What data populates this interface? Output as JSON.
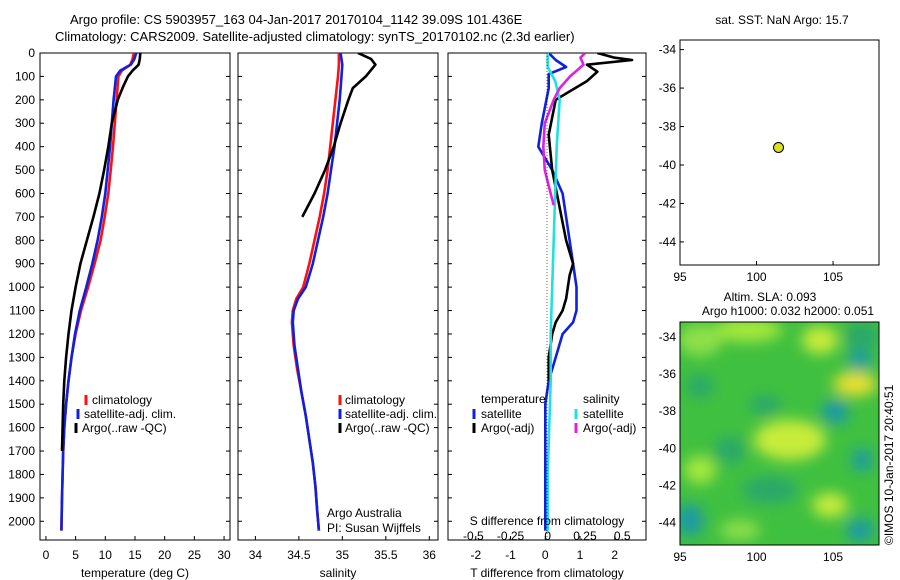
{
  "header": {
    "line1": "Argo profile: CS 5903957_163 04-Jan-2017 20170104_1142 39.09S 101.436E",
    "line2": "Climatology: CARS2009. Satellite-adjusted climatology: synTS_20170102.nc (2.3d earlier)"
  },
  "footer_note": "©IMOS 10-Jan-2017 20:40:51",
  "colors": {
    "climatology": "#ff1010",
    "satellite": "#1020e0",
    "argo": "#000000",
    "satellite_diff_salinity": "#20e0e0",
    "argo_diff_salinity": "#e020e0",
    "argo_marker": "#d8e020",
    "map_background": "#40c040"
  },
  "chart_data": [
    {
      "type": "line",
      "panel": "temperature",
      "xlabel": "temperature (deg C)",
      "ylabel": "",
      "xlim": [
        -1,
        31
      ],
      "ylim": [
        2080,
        0
      ],
      "xticks": [
        "0",
        "5",
        "10",
        "15",
        "20",
        "25",
        "30"
      ],
      "yticks": [
        "0",
        "100",
        "200",
        "300",
        "400",
        "500",
        "600",
        "700",
        "800",
        "900",
        "1000",
        "1100",
        "1200",
        "1300",
        "1400",
        "1500",
        "1600",
        "1700",
        "1800",
        "1900",
        "2000"
      ],
      "legend": [
        "climatology",
        "satellite-adj. clim.",
        "Argo(..raw -QC)"
      ],
      "series": [
        {
          "name": "climatology",
          "color_key": "climatology",
          "x": [
            14.8,
            14.6,
            14.2,
            12.8,
            12.2,
            11.9,
            11.6,
            11.3,
            10.9,
            10.5,
            9.9,
            9.2,
            8.2,
            7.1,
            5.9,
            5.0,
            4.3,
            3.8,
            3.4,
            3.1,
            2.9,
            2.8,
            2.7,
            2.6
          ],
          "y": [
            0,
            25,
            50,
            75,
            100,
            200,
            300,
            400,
            500,
            600,
            700,
            800,
            900,
            1000,
            1100,
            1200,
            1300,
            1400,
            1500,
            1600,
            1700,
            1800,
            1900,
            2040
          ]
        },
        {
          "name": "satellite-adj. clim.",
          "color_key": "satellite",
          "x": [
            15.2,
            14.9,
            14.3,
            12.5,
            11.8,
            11.4,
            11.1,
            10.8,
            10.4,
            10.0,
            9.4,
            8.7,
            7.8,
            6.8,
            5.7,
            4.9,
            4.3,
            3.8,
            3.4,
            3.1,
            2.9,
            2.8,
            2.7,
            2.6
          ],
          "y": [
            0,
            25,
            50,
            75,
            100,
            200,
            300,
            400,
            500,
            600,
            700,
            800,
            900,
            1000,
            1100,
            1200,
            1300,
            1400,
            1500,
            1600,
            1700,
            1800,
            1900,
            2040
          ]
        },
        {
          "name": "Argo(..raw -QC)",
          "color_key": "argo",
          "x": [
            15.9,
            15.8,
            15.6,
            14.6,
            13.8,
            12.9,
            12.1,
            11.6,
            11.1,
            10.5,
            9.8,
            9.0,
            8.0,
            6.9,
            5.8,
            5.0,
            4.3,
            3.8,
            3.4,
            3.1,
            2.9,
            2.8,
            2.7
          ],
          "y": [
            0,
            25,
            50,
            75,
            100,
            150,
            200,
            250,
            300,
            400,
            500,
            600,
            700,
            800,
            900,
            1000,
            1100,
            1200,
            1300,
            1400,
            1500,
            1600,
            1700
          ]
        }
      ]
    },
    {
      "type": "line",
      "panel": "salinity",
      "xlabel": "salinity",
      "ylabel": "",
      "xlim": [
        33.8,
        36.1
      ],
      "ylim": [
        2080,
        0
      ],
      "xticks": [
        "34",
        "34.5",
        "35",
        "35.5",
        "36"
      ],
      "legend": [
        "climatology",
        "satellite-adj. clim.",
        "Argo(..raw -QC)"
      ],
      "annotation": [
        "Argo Australia",
        "PI: Susan Wijffels"
      ],
      "series": [
        {
          "name": "climatology",
          "color_key": "climatology",
          "x": [
            34.96,
            34.96,
            34.95,
            34.92,
            34.89,
            34.86,
            34.83,
            34.79,
            34.74,
            34.68,
            34.62,
            34.55,
            34.47,
            34.43,
            34.42,
            34.44,
            34.48,
            34.53,
            34.58,
            34.62,
            34.66,
            34.69,
            34.71,
            34.73
          ],
          "y": [
            0,
            50,
            100,
            200,
            300,
            400,
            500,
            600,
            700,
            800,
            900,
            1000,
            1050,
            1100,
            1150,
            1250,
            1350,
            1450,
            1550,
            1650,
            1750,
            1850,
            1950,
            2040
          ]
        },
        {
          "name": "satellite-adj. clim.",
          "color_key": "satellite",
          "x": [
            34.98,
            35.0,
            34.99,
            34.97,
            34.94,
            34.91,
            34.87,
            34.83,
            34.78,
            34.72,
            34.66,
            34.58,
            34.49,
            34.44,
            34.43,
            34.45,
            34.49,
            34.53,
            34.58,
            34.62,
            34.66,
            34.69,
            34.71,
            34.73
          ],
          "y": [
            0,
            50,
            100,
            200,
            300,
            400,
            500,
            600,
            700,
            800,
            900,
            1000,
            1050,
            1100,
            1150,
            1250,
            1350,
            1450,
            1550,
            1650,
            1750,
            1850,
            1950,
            2040
          ]
        },
        {
          "name": "Argo(..raw -QC)",
          "color_key": "argo",
          "x": [
            35.18,
            35.33,
            35.38,
            35.27,
            35.12,
            35.07,
            34.98,
            34.9,
            34.8,
            34.68,
            34.54
          ],
          "y": [
            0,
            25,
            50,
            100,
            150,
            200,
            300,
            400,
            500,
            600,
            700
          ]
        }
      ]
    },
    {
      "type": "line",
      "panel": "difference",
      "xlabel": "T difference from climatology",
      "secondary_xlabel": "S difference from climatology",
      "xlim": [
        -2.8,
        2.9
      ],
      "ylim": [
        2080,
        0
      ],
      "xticks": [
        "-2",
        "-1",
        "0",
        "1",
        "2"
      ],
      "secondary_xticks": [
        "-0.5",
        "-0.25",
        "0",
        "0.25",
        "0.5"
      ],
      "legend_left_title": "temperature",
      "legend_right_title": "salinity",
      "legend": [
        "satellite",
        "Argo(-adj)",
        "satellite",
        "Argo(-adj)"
      ],
      "series": [
        {
          "name": "satellite",
          "quantity": "temperature",
          "color_key": "satellite",
          "x": [
            0.1,
            0.3,
            0.6,
            0.1,
            0.1,
            -0.1,
            -0.2,
            0.2,
            0.5,
            0.6,
            0.7,
            0.8,
            0.9,
            0.9,
            0.8,
            0.5,
            0.3,
            0.1,
            0.0,
            0.0,
            0.0,
            0.0
          ],
          "y": [
            0,
            30,
            60,
            90,
            150,
            300,
            400,
            500,
            600,
            700,
            800,
            900,
            1000,
            1100,
            1150,
            1200,
            1300,
            1400,
            1500,
            1700,
            1900,
            2040
          ]
        },
        {
          "name": "Argo(-adj)",
          "quantity": "temperature",
          "color_key": "argo",
          "x": [
            1.5,
            2.0,
            2.5,
            1.2,
            1.5,
            1.2,
            0.3,
            0.1,
            0.2,
            0.4,
            0.6,
            0.8,
            0.7,
            0.6,
            0.5,
            0.3,
            0.2,
            0.1,
            0.1
          ],
          "y": [
            0,
            20,
            30,
            50,
            80,
            120,
            200,
            350,
            500,
            650,
            800,
            900,
            950,
            1050,
            1100,
            1150,
            1200,
            1300,
            1400
          ]
        },
        {
          "name": "satellite",
          "quantity": "salinity",
          "color_key": "satellite_diff_salinity",
          "x": [
            0.0,
            0.0,
            0.05,
            0.08,
            0.06,
            0.05,
            0.04,
            0.03,
            0.02,
            0.02,
            0.01,
            0.0,
            0.0,
            0.0,
            0.0
          ],
          "y": [
            0,
            60,
            120,
            200,
            400,
            600,
            800,
            1000,
            1200,
            1400,
            1600,
            1800,
            1900,
            2000,
            2040
          ]
        },
        {
          "name": "Argo(-adj)",
          "quantity": "salinity",
          "color_key": "argo_diff_salinity",
          "x": [
            0.25,
            0.22,
            0.24,
            0.15,
            0.08,
            0.04,
            -0.02,
            -0.03,
            -0.02,
            0.0,
            0.02,
            0.04
          ],
          "y": [
            0,
            20,
            50,
            100,
            150,
            200,
            300,
            400,
            500,
            550,
            600,
            650
          ]
        }
      ]
    },
    {
      "type": "scatter",
      "panel": "sst_map",
      "title": "sat. SST: NaN Argo: 15.7",
      "xlim": [
        95,
        108
      ],
      "ylim": [
        -45.2,
        -33.5
      ],
      "xticks": [
        "95",
        "100",
        "105"
      ],
      "yticks": [
        "-34",
        "-36",
        "-38",
        "-40",
        "-42",
        "-44"
      ],
      "points": [
        {
          "x": 101.436,
          "y": -39.09
        }
      ]
    },
    {
      "type": "heatmap",
      "panel": "sla_map",
      "title_line1": "Altim. SLA: 0.093",
      "title_line2": "Argo h1000: 0.032 h2000: 0.051",
      "xlim": [
        95,
        108
      ],
      "ylim": [
        -45.2,
        -33.2
      ],
      "xticks": [
        "95",
        "100",
        "105"
      ],
      "yticks": [
        "-34",
        "-36",
        "-38",
        "-40",
        "-42",
        "-44"
      ]
    }
  ]
}
